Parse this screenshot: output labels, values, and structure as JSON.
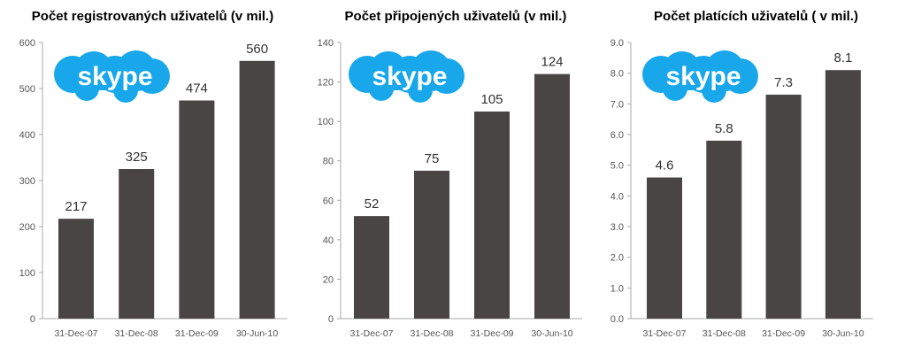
{
  "chart_data": [
    {
      "type": "bar",
      "title": "Počet registrovaných uživatelů (v mil.)",
      "logo": "skype",
      "categories": [
        "31-Dec-07",
        "31-Dec-08",
        "31-Dec-09",
        "30-Jun-10"
      ],
      "values": [
        217,
        325,
        474,
        560
      ],
      "value_labels": [
        "217",
        "325",
        "474",
        "560"
      ],
      "ylim": [
        0,
        600
      ],
      "yticks": [
        "0",
        "100",
        "200",
        "300",
        "400",
        "500",
        "600"
      ],
      "bar_color": "#4a4545",
      "grid": false
    },
    {
      "type": "bar",
      "title": "Počet připojených uživatelů (v mil.)",
      "logo": "skype",
      "categories": [
        "31-Dec-07",
        "31-Dec-08",
        "31-Dec-09",
        "30-Jun-10"
      ],
      "values": [
        52,
        75,
        105,
        124
      ],
      "value_labels": [
        "52",
        "75",
        "105",
        "124"
      ],
      "ylim": [
        0,
        140
      ],
      "yticks": [
        "0",
        "20",
        "40",
        "60",
        "80",
        "100",
        "120",
        "140"
      ],
      "bar_color": "#4a4545",
      "grid": false
    },
    {
      "type": "bar",
      "title": "Počet platících uživatelů ( v mil.)",
      "logo": "skype",
      "categories": [
        "31-Dec-07",
        "31-Dec-08",
        "31-Dec-09",
        "30-Jun-10"
      ],
      "values": [
        4.6,
        5.8,
        7.3,
        8.1
      ],
      "value_labels": [
        "4.6",
        "5.8",
        "7.3",
        "8.1"
      ],
      "ylim": [
        0,
        9
      ],
      "yticks": [
        "0.0",
        "1.0",
        "2.0",
        "3.0",
        "4.0",
        "5.0",
        "6.0",
        "7.0",
        "8.0",
        "9.0"
      ],
      "bar_color": "#4a4545",
      "grid": false
    }
  ],
  "colors": {
    "logo_blue": "#18a7ea",
    "axis": "#aaaaaa",
    "tick_text": "#555555"
  }
}
